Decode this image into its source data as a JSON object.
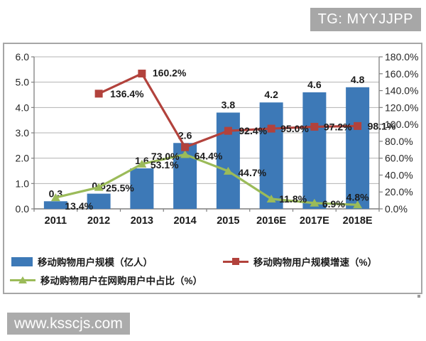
{
  "badge": {
    "text": "TG: MYYJJPP",
    "bg": "#a7a7a7"
  },
  "watermark": {
    "text": "www.ksscjs.com",
    "bg": "#ababab"
  },
  "chart_data": {
    "type": "combo-bar-line",
    "categories": [
      "2011",
      "2012",
      "2013",
      "2014",
      "2015",
      "2016E",
      "2017E",
      "2018E"
    ],
    "series": [
      {
        "name": "移动购物用户规模（亿人）",
        "type": "bar",
        "axis": "left",
        "color": "#3d79b7",
        "values": [
          0.3,
          0.6,
          1.6,
          2.6,
          3.8,
          4.2,
          4.6,
          4.8
        ],
        "labels": [
          "0.3",
          "0.6",
          "1.6",
          "2.6",
          "3.8",
          "4.2",
          "4.6",
          "4.8"
        ]
      },
      {
        "name": "移动购物用户规模增速（%）",
        "type": "line",
        "marker": "square",
        "axis": "right",
        "color": "#b2423c",
        "values": [
          null,
          136.4,
          160.2,
          73.0,
          92.4,
          95.0,
          97.2,
          98.1
        ],
        "labels": [
          "",
          "136.4%",
          "160.2%",
          "73.0%",
          "92.4%",
          "95.0%",
          "97.2%",
          "98.1%"
        ]
      },
      {
        "name": "移动购物用户在网购用户中占比（%）",
        "type": "line",
        "marker": "triangle",
        "axis": "right",
        "color": "#9bbb59",
        "values": [
          13.4,
          25.5,
          53.1,
          64.4,
          44.7,
          11.8,
          6.9,
          4.8
        ],
        "labels": [
          "13.4%",
          "25.5%",
          "53.1%",
          "64.4%",
          "44.7%",
          "11.8%",
          "6.9%",
          "4.8%"
        ]
      }
    ],
    "left_axis": {
      "min": 0,
      "max": 6,
      "step": 1,
      "labels": [
        "0.0",
        "1.0",
        "2.0",
        "3.0",
        "4.0",
        "5.0",
        "6.0"
      ]
    },
    "right_axis": {
      "min": 0,
      "max": 180,
      "step": 20,
      "labels": [
        "0.0%",
        "20.0%",
        "40.0%",
        "60.0%",
        "80.0%",
        "100.0%",
        "120.0%",
        "140.0%",
        "160.0%",
        "180.0%"
      ]
    },
    "grid": true,
    "legend_position": "bottom"
  }
}
